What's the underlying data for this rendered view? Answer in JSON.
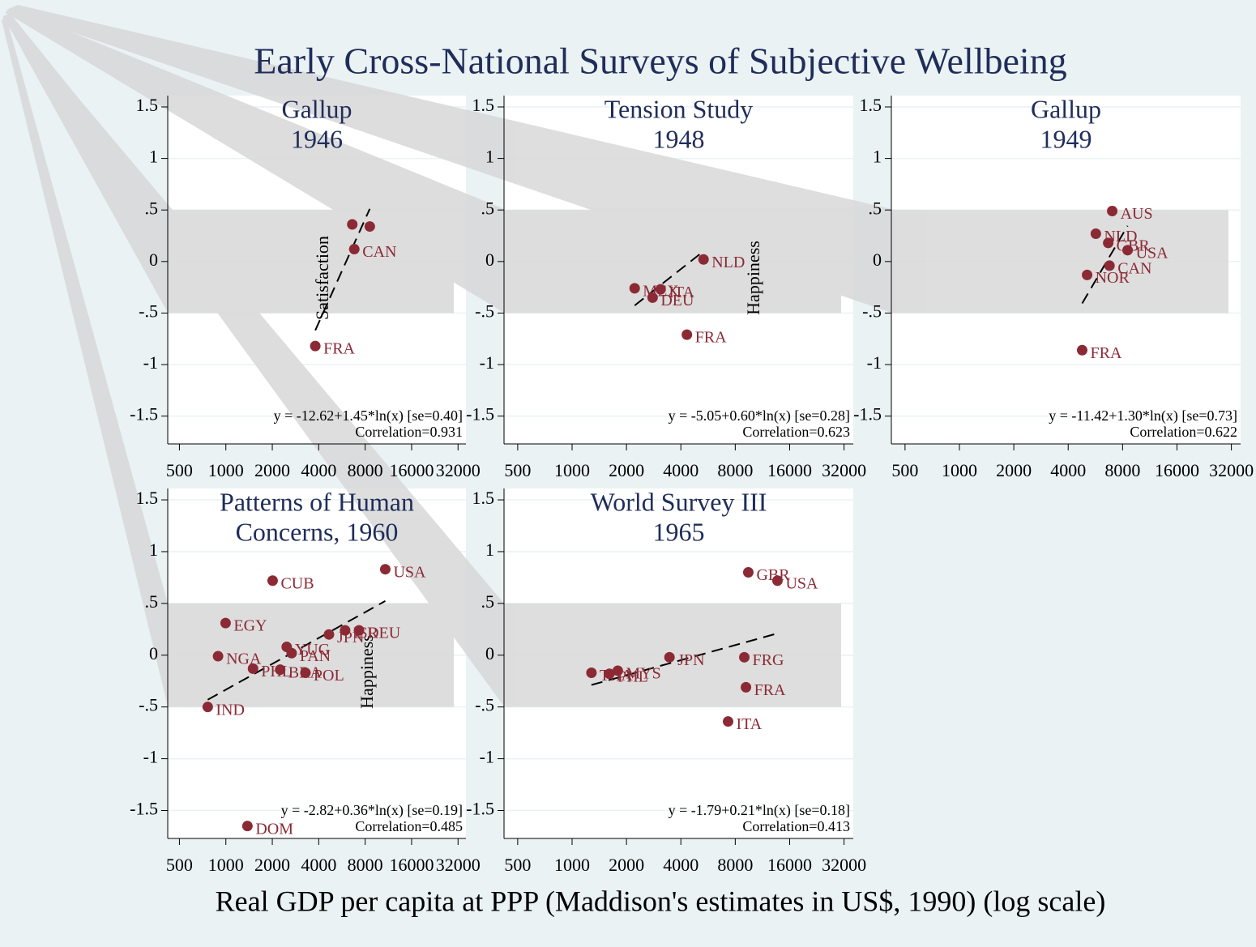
{
  "title": "Early Cross-National Surveys of Subjective Wellbeing",
  "xlabel": "Real GDP per capita at PPP (Maddison's estimates in US$, 1990) (log scale)",
  "chart_data": [
    {
      "type": "scatter",
      "title": [
        "Gallup",
        "1946"
      ],
      "ylabel": "Satisfaction",
      "log_x": true,
      "xlim": [
        420,
        36000
      ],
      "ylim": [
        -1.77,
        1.61
      ],
      "xticks": [
        500,
        1000,
        2000,
        4000,
        8000,
        16000,
        32000
      ],
      "yticks": [
        1.5,
        1,
        {
          "value": 0.5,
          "label": ".5"
        },
        0,
        {
          "value": -0.5,
          "label": "-.5"
        },
        -1,
        -1.5
      ],
      "series": [
        {
          "color": "#8b2a35",
          "x": [
            3800,
            6800,
            6600,
            8570
          ],
          "values": [
            -0.82,
            0.12,
            0.36,
            0.34
          ],
          "labels": [
            "FRA",
            "CAN",
            null,
            null
          ]
        }
      ],
      "fit": {
        "intercept": -12.62,
        "slope": 1.45
      },
      "fit_equation": "y = -12.62+1.45*ln(x) [se=0.40]",
      "correlation": "Correlation=0.931"
    },
    {
      "type": "scatter",
      "title": [
        "Tension Study",
        "1948"
      ],
      "ylabel": "Happiness",
      "log_x": true,
      "xlim": [
        420,
        36000
      ],
      "ylim": [
        -1.77,
        1.61
      ],
      "xticks": [
        500,
        1000,
        2000,
        4000,
        8000,
        16000,
        32000
      ],
      "yticks": [
        1.5,
        1,
        {
          "value": 0.5,
          "label": ".5"
        },
        0,
        {
          "value": -0.5,
          "label": "-.5"
        },
        -1,
        -1.5
      ],
      "series": [
        {
          "color": "#8b2a35",
          "x": [
            5340,
            2220,
            3090,
            2790,
            4320
          ],
          "values": [
            0.02,
            -0.26,
            -0.27,
            -0.35,
            -0.71
          ],
          "labels": [
            "NLD",
            "MEX",
            "ITA",
            "DEU",
            "FRA"
          ]
        }
      ],
      "fit": {
        "intercept": -5.05,
        "slope": 0.6
      },
      "fit_equation": "y = -5.05+0.60*ln(x) [se=0.28]",
      "correlation": "Correlation=0.623"
    },
    {
      "type": "scatter",
      "title": [
        "Gallup",
        "1949"
      ],
      "log_x": true,
      "xlim": [
        420,
        36000
      ],
      "ylim": [
        -1.77,
        1.61
      ],
      "xticks": [
        500,
        1000,
        2000,
        4000,
        8000,
        16000,
        32000
      ],
      "yticks": [
        1.5,
        1,
        {
          "value": 0.5,
          "label": ".5"
        },
        0,
        {
          "value": -0.5,
          "label": "-.5"
        },
        -1,
        -1.5
      ],
      "series": [
        {
          "color": "#8b2a35",
          "x": [
            7010,
            5690,
            6660,
            8530,
            6770,
            5090,
            4780
          ],
          "values": [
            0.49,
            0.27,
            0.18,
            0.11,
            -0.04,
            -0.13,
            -0.86
          ],
          "labels": [
            "AUS",
            "NLD",
            "GBR",
            "USA",
            "CAN",
            "NOR",
            "FRA"
          ]
        }
      ],
      "fit": {
        "intercept": -11.42,
        "slope": 1.3
      },
      "fit_equation": "y = -11.42+1.30*ln(x) [se=0.73]",
      "correlation": "Correlation=0.622"
    },
    {
      "type": "scatter",
      "title": [
        "Patterns of Human",
        "Concerns, 1960"
      ],
      "ylabel": "Happiness",
      "log_x": true,
      "xlim": [
        420,
        36000
      ],
      "ylim": [
        -1.77,
        1.61
      ],
      "xticks": [
        500,
        1000,
        2000,
        4000,
        8000,
        16000,
        32000
      ],
      "yticks": [
        1.5,
        1,
        {
          "value": 0.5,
          "label": ".5"
        },
        0,
        {
          "value": -0.5,
          "label": "-.5"
        },
        -1,
        -1.5
      ],
      "series": [
        {
          "color": "#8b2a35",
          "x": [
            10800,
            2010,
            996,
            890,
            1500,
            2250,
            2480,
            2670,
            3280,
            763,
            1380,
            4660,
            5930,
            7300
          ],
          "values": [
            0.83,
            0.72,
            0.31,
            -0.01,
            -0.13,
            -0.14,
            0.08,
            0.02,
            -0.17,
            -0.5,
            -1.65,
            0.2,
            0.24,
            0.24
          ],
          "labels": [
            "USA",
            "CUB",
            "EGY",
            "NGA",
            "PHL",
            "BRA",
            "YUG",
            "PAN",
            "POL",
            "IND",
            "DOM",
            "JPN",
            "ISR",
            "DEU"
          ]
        }
      ],
      "fit": {
        "intercept": -2.82,
        "slope": 0.36
      },
      "fit_equation": "y = -2.82+0.36*ln(x) [se=0.19]",
      "correlation": "Correlation=0.485"
    },
    {
      "type": "scatter",
      "title": [
        "World Survey III",
        "1965"
      ],
      "log_x": true,
      "xlim": [
        420,
        36000
      ],
      "ylim": [
        -1.77,
        1.61
      ],
      "xticks": [
        500,
        1000,
        2000,
        4000,
        8000,
        16000,
        32000
      ],
      "yticks": [
        1.5,
        1,
        {
          "value": 0.5,
          "label": ".5"
        },
        0,
        {
          "value": -0.5,
          "label": "-.5"
        },
        -1,
        -1.5
      ],
      "series": [
        {
          "color": "#8b2a35",
          "x": [
            9450,
            13700,
            3460,
            8980,
            9170,
            7300,
            1280,
            1790,
            1610
          ],
          "values": [
            0.8,
            0.72,
            -0.02,
            -0.02,
            -0.31,
            -0.64,
            -0.17,
            -0.15,
            -0.18
          ],
          "labels": [
            "GBR",
            "USA",
            "JPN",
            "FRG",
            "FRA",
            "ITA",
            "THA",
            "MYS",
            "PHL"
          ]
        }
      ],
      "fit": {
        "intercept": -1.79,
        "slope": 0.21
      },
      "fit_equation": "y = -1.79+0.21*ln(x) [se=0.18]",
      "correlation": "Correlation=0.413"
    }
  ]
}
